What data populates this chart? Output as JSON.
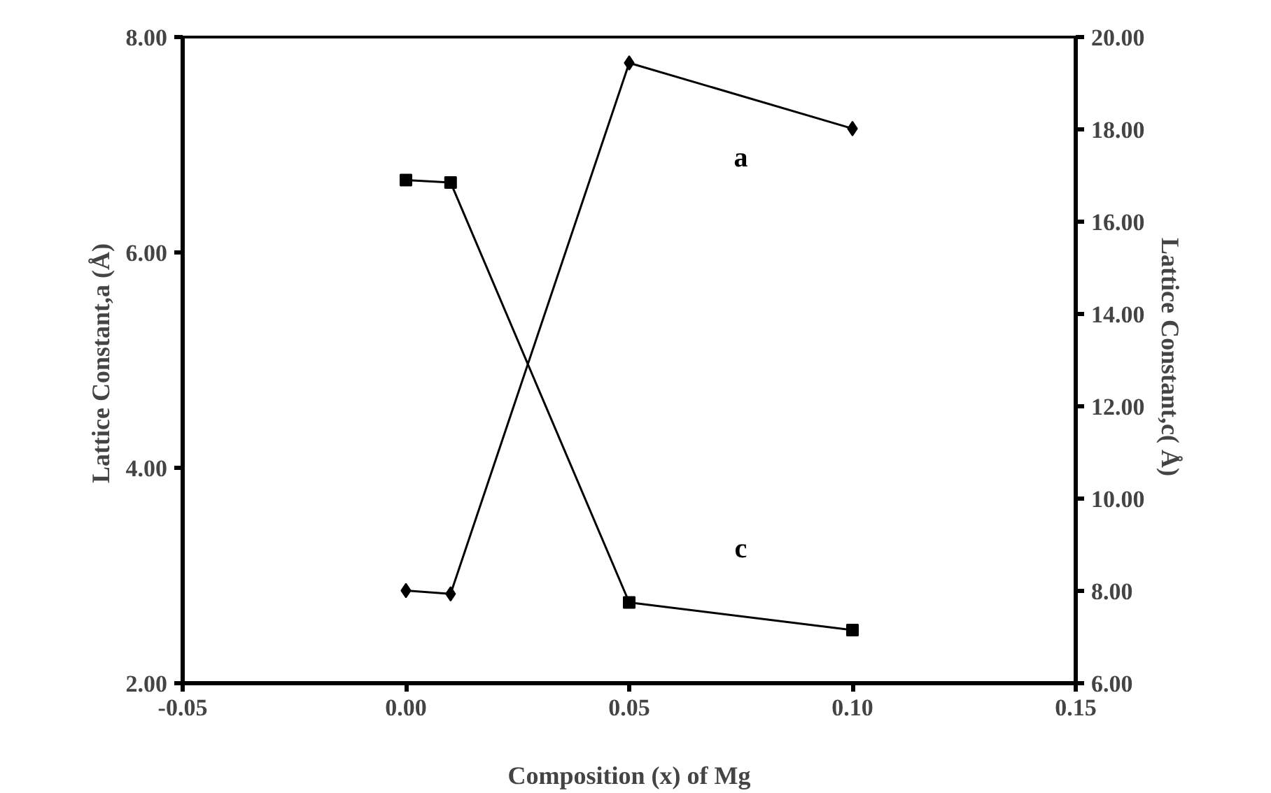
{
  "chart_data": {
    "type": "line",
    "xlabel": "Composition (x) of Mg",
    "ylabel": "Lattice  Constant,a (Å)",
    "y2label": "Lattice  Constant,c( Å)",
    "x": [
      0.0,
      0.01,
      0.05,
      0.1
    ],
    "series": [
      {
        "name": "a",
        "color": "#000000",
        "marker": "diamond",
        "values": [
          2.86,
          2.83,
          7.76,
          7.15
        ]
      },
      {
        "name": "c",
        "color": "#000000",
        "marker": "square",
        "axis": "y2",
        "values": [
          16.9,
          16.85,
          7.75,
          7.15
        ]
      }
    ],
    "xlim": [
      -0.05,
      0.15
    ],
    "xticks": [
      {
        "value": -0.05,
        "label": "-0.05"
      },
      {
        "value": 0,
        "label": "0.00"
      },
      {
        "value": 0.05,
        "label": "0.05"
      },
      {
        "value": 0.1,
        "label": "0.10"
      },
      {
        "value": 0.15,
        "label": "0.15"
      }
    ],
    "ylim": [
      2,
      8
    ],
    "yticks": [
      {
        "value": 2,
        "label": "2.00"
      },
      {
        "value": 4,
        "label": "4.00"
      },
      {
        "value": 6,
        "label": "6.00"
      },
      {
        "value": 8,
        "label": "8.00"
      }
    ],
    "y2lim": [
      6,
      20
    ],
    "y2ticks": [
      {
        "value": 6,
        "label": "6.00"
      },
      {
        "value": 8,
        "label": "8.00"
      },
      {
        "value": 10,
        "label": "10.00"
      },
      {
        "value": 12,
        "label": "12.00"
      },
      {
        "value": 14,
        "label": "14.00"
      },
      {
        "value": 16,
        "label": "16.00"
      },
      {
        "value": 18,
        "label": "18.00"
      },
      {
        "value": 20,
        "label": "20.00"
      }
    ],
    "grid": false,
    "line_style": "solid"
  }
}
